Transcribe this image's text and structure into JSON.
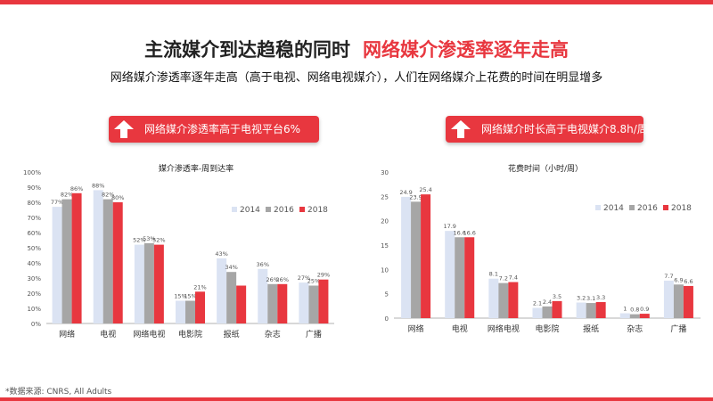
{
  "header": {
    "title_main": "主流媒介到达趋稳的同时",
    "title_highlight": "网络媒介渗透率逐年走高",
    "subtitle": "网络媒介渗透率逐年走高（高于电视、网络电视媒介），人们在网络媒介上花费的时间在明显增多"
  },
  "banners": {
    "left": "网络媒介渗透率高于电视平台6%",
    "right": "网络媒介时长高于电视媒介8.8h/周"
  },
  "source": "*数据来源: CNRS, All Adults",
  "colors": {
    "accent": "#e8373f",
    "series_2014": "#dbe3f3",
    "series_2016": "#a6a6a6",
    "series_2018": "#e8373f"
  },
  "chart_data": [
    {
      "type": "bar",
      "title": "媒介渗透率-周到达率",
      "categories": [
        "网络",
        "电视",
        "网络电视",
        "电影院",
        "报纸",
        "杂志",
        "广播"
      ],
      "ylim": [
        0,
        100
      ],
      "yticks": [
        "0%",
        "10%",
        "20%",
        "30%",
        "40%",
        "50%",
        "60%",
        "70%",
        "80%",
        "90%",
        "100%"
      ],
      "legend_position": "right",
      "series": [
        {
          "name": "2014",
          "values": [
            77,
            88,
            52,
            15,
            43,
            36,
            27
          ],
          "labels": [
            "77%",
            "88%",
            "52%",
            "15%",
            "43%",
            "36%",
            "27%"
          ]
        },
        {
          "name": "2016",
          "values": [
            82,
            82,
            53,
            15,
            34,
            26,
            25
          ],
          "labels": [
            "82%",
            "82%",
            "53%",
            "15%",
            "34%",
            "26%",
            "25%"
          ]
        },
        {
          "name": "2018",
          "values": [
            86,
            80,
            52,
            21,
            25,
            26,
            29
          ],
          "labels": [
            "86%",
            "80%",
            "52%",
            "21%",
            "",
            "26%",
            "29%"
          ]
        }
      ]
    },
    {
      "type": "bar",
      "title": "花费时间（小时/周）",
      "categories": [
        "网络",
        "电视",
        "网络电视",
        "电影院",
        "报纸",
        "杂志",
        "广播"
      ],
      "ylim": [
        0,
        30
      ],
      "yticks": [
        "0",
        "5",
        "10",
        "15",
        "20",
        "25",
        "30"
      ],
      "legend_position": "top-right",
      "series": [
        {
          "name": "2014",
          "values": [
            24.9,
            17.9,
            8.1,
            2.1,
            3.2,
            1,
            7.7
          ],
          "labels": [
            "24.9",
            "17.9",
            "8.1",
            "2.1",
            "3.2",
            "1",
            "7.7"
          ]
        },
        {
          "name": "2016",
          "values": [
            23.9,
            16.6,
            7.2,
            2.4,
            3.1,
            0.8,
            6.9
          ],
          "labels": [
            "23.9",
            "16.6",
            "7.2",
            "2.4",
            "3.1",
            "0.8",
            "6.9"
          ]
        },
        {
          "name": "2018",
          "values": [
            25.4,
            16.6,
            7.4,
            3.5,
            3.3,
            0.9,
            6.6
          ],
          "labels": [
            "25.4",
            "16.6",
            "7.4",
            "3.5",
            "3.3",
            "0.9",
            "6.6"
          ]
        }
      ]
    }
  ]
}
